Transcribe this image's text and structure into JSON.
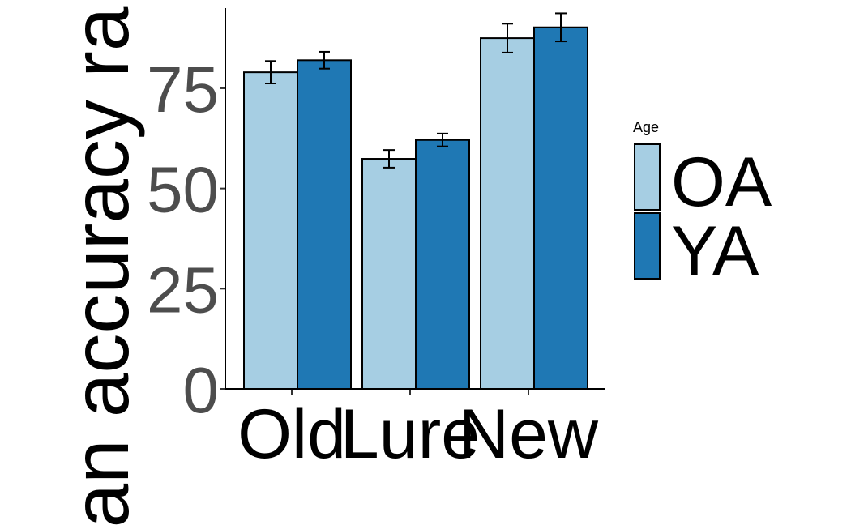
{
  "chart_data": {
    "type": "bar",
    "y_label": "an accuracy ra",
    "categories": [
      "Old",
      "Lure",
      "New"
    ],
    "legend_title": "Age",
    "series": [
      {
        "name": "OA",
        "color": "#a6cee3",
        "values": [
          79.0,
          57.4,
          87.5
        ],
        "errors": [
          2.8,
          2.2,
          3.6
        ]
      },
      {
        "name": "YA",
        "color": "#1f78b4",
        "values": [
          82.0,
          62.1,
          90.2
        ],
        "errors": [
          2.1,
          1.6,
          3.5
        ]
      }
    ],
    "ylim": [
      0,
      95
    ],
    "yticks": [
      0,
      25,
      50,
      75
    ],
    "grid": false
  }
}
